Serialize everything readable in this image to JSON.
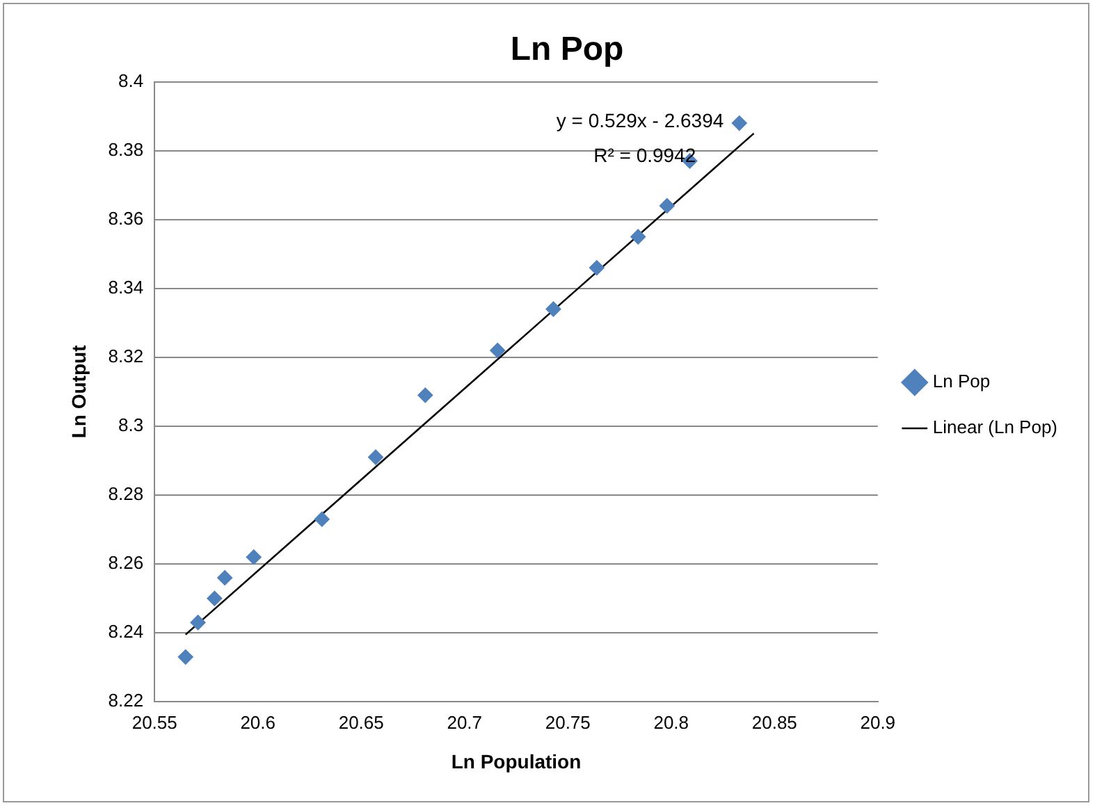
{
  "chart_data": {
    "type": "scatter",
    "title": "Ln Pop",
    "xlabel": "Ln Population",
    "ylabel": "Ln Output",
    "xlim": [
      20.55,
      20.9
    ],
    "xticks": [
      20.55,
      20.6,
      20.65,
      20.7,
      20.75,
      20.8,
      20.85,
      20.9
    ],
    "ylim": [
      8.22,
      8.4
    ],
    "yticks": [
      8.22,
      8.24,
      8.26,
      8.28,
      8.3,
      8.32,
      8.34,
      8.36,
      8.38,
      8.4
    ],
    "grid": "y",
    "legend": "right",
    "annotations": [
      "y = 0.529x - 2.6394",
      "R² = 0.9942"
    ],
    "series": [
      {
        "name": "Ln Pop",
        "color": "#4f81bd",
        "marker": "diamond",
        "x": [
          20.565,
          20.571,
          20.579,
          20.584,
          20.598,
          20.631,
          20.657,
          20.681,
          20.716,
          20.743,
          20.764,
          20.784,
          20.798,
          20.809,
          20.833
        ],
        "values": [
          8.233,
          8.243,
          8.25,
          8.256,
          8.262,
          8.273,
          8.291,
          8.309,
          8.322,
          8.334,
          8.346,
          8.355,
          8.364,
          8.377,
          8.388
        ]
      },
      {
        "name": "Linear (Ln Pop)",
        "type": "line",
        "color": "#000000",
        "marker": "none",
        "x": [
          20.565,
          20.84
        ],
        "values": [
          8.2395,
          8.385
        ]
      }
    ]
  }
}
